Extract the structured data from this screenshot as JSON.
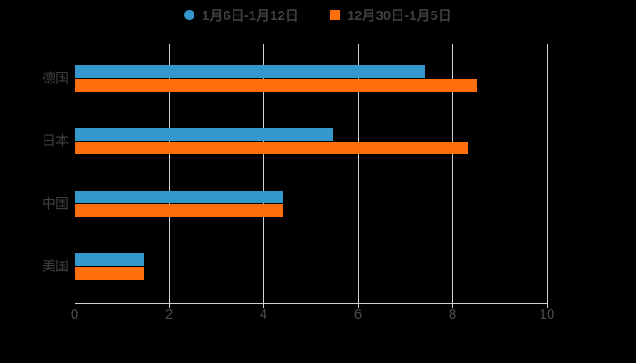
{
  "page": {
    "background": "#000000",
    "gridline_color": "#cfcfcf",
    "label_color": "#3f3f3f",
    "tick_color": "#4c4c4c"
  },
  "legend": {
    "items": [
      {
        "label": "1月6日-1月12日",
        "marker": "circle",
        "color": "#3498cc"
      },
      {
        "label": "12月30日-1月5日",
        "marker": "square",
        "color": "#ff6e0c"
      }
    ]
  },
  "chart_data": {
    "type": "bar",
    "orientation": "horizontal",
    "title": "",
    "xlabel": "",
    "ylabel": "",
    "categories": [
      "德国",
      "日本",
      "中国",
      "美国"
    ],
    "series": [
      {
        "name": "1月6日-1月12日",
        "color": "#3498cc",
        "values": [
          7.4,
          5.45,
          4.4,
          1.45
        ]
      },
      {
        "name": "12月30日-1月5日",
        "color": "#ff6e0c",
        "values": [
          8.5,
          8.3,
          4.4,
          1.45
        ]
      }
    ],
    "x_ticks": [
      0,
      2,
      4,
      6,
      8,
      10
    ],
    "xlim": [
      0,
      10
    ],
    "grid": true,
    "legend_position": "top",
    "background": "#000000"
  }
}
